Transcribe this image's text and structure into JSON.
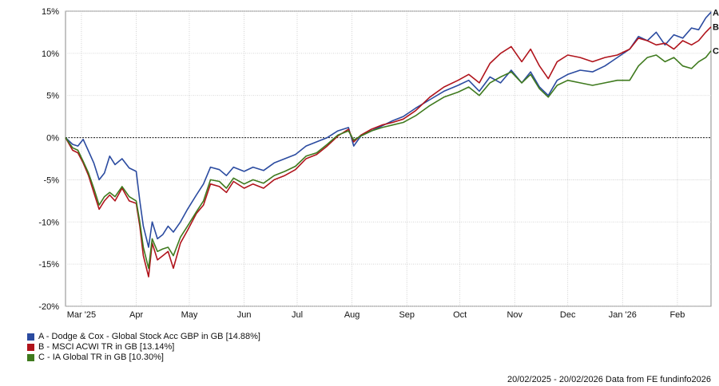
{
  "chart_data": {
    "type": "line",
    "y_ticks": [
      "15%",
      "10%",
      "5%",
      "0%",
      "-5%",
      "-10%",
      "-15%",
      "-20%"
    ],
    "y_tick_values": [
      15,
      10,
      5,
      0,
      -5,
      -10,
      -15,
      -20
    ],
    "ylim": [
      -20,
      15
    ],
    "xlim": [
      "2025-02-20",
      "2026-02-20"
    ],
    "x_ticks": [
      {
        "label": "Mar '25",
        "date": "2025-03-01"
      },
      {
        "label": "Apr",
        "date": "2025-04-01"
      },
      {
        "label": "May",
        "date": "2025-05-01"
      },
      {
        "label": "Jun",
        "date": "2025-06-01"
      },
      {
        "label": "Jul",
        "date": "2025-07-01"
      },
      {
        "label": "Aug",
        "date": "2025-08-01"
      },
      {
        "label": "Sep",
        "date": "2025-09-01"
      },
      {
        "label": "Oct",
        "date": "2025-10-01"
      },
      {
        "label": "Nov",
        "date": "2025-11-01"
      },
      {
        "label": "Dec",
        "date": "2025-12-01"
      },
      {
        "label": "Jan '26",
        "date": "2026-01-01"
      },
      {
        "label": "Feb",
        "date": "2026-02-01"
      }
    ],
    "grid": true,
    "zero_line": true,
    "series": [
      {
        "name": "A - Dodge & Cox - Global Stock Acc GBP in GB [14.88%]",
        "end_label": "A",
        "color": "#2b4ba0",
        "points": [
          [
            "2025-02-20",
            0
          ],
          [
            "2025-02-24",
            -0.8
          ],
          [
            "2025-02-27",
            -1.0
          ],
          [
            "2025-03-02",
            -0.2
          ],
          [
            "2025-03-05",
            -1.6
          ],
          [
            "2025-03-08",
            -3.0
          ],
          [
            "2025-03-11",
            -5.0
          ],
          [
            "2025-03-14",
            -4.2
          ],
          [
            "2025-03-17",
            -2.2
          ],
          [
            "2025-03-20",
            -3.2
          ],
          [
            "2025-03-24",
            -2.5
          ],
          [
            "2025-03-28",
            -3.6
          ],
          [
            "2025-04-01",
            -4.0
          ],
          [
            "2025-04-03",
            -7.5
          ],
          [
            "2025-04-05",
            -10.5
          ],
          [
            "2025-04-08",
            -13.0
          ],
          [
            "2025-04-10",
            -10.0
          ],
          [
            "2025-04-13",
            -12.0
          ],
          [
            "2025-04-16",
            -11.5
          ],
          [
            "2025-04-19",
            -10.5
          ],
          [
            "2025-04-22",
            -11.2
          ],
          [
            "2025-04-26",
            -10.0
          ],
          [
            "2025-04-30",
            -8.5
          ],
          [
            "2025-05-05",
            -6.8
          ],
          [
            "2025-05-09",
            -5.5
          ],
          [
            "2025-05-13",
            -3.5
          ],
          [
            "2025-05-18",
            -3.8
          ],
          [
            "2025-05-22",
            -4.5
          ],
          [
            "2025-05-26",
            -3.5
          ],
          [
            "2025-06-01",
            -4.0
          ],
          [
            "2025-06-06",
            -3.5
          ],
          [
            "2025-06-12",
            -3.9
          ],
          [
            "2025-06-18",
            -3.0
          ],
          [
            "2025-06-24",
            -2.5
          ],
          [
            "2025-06-30",
            -2.0
          ],
          [
            "2025-07-06",
            -1.0
          ],
          [
            "2025-07-12",
            -0.5
          ],
          [
            "2025-07-18",
            0.0
          ],
          [
            "2025-07-24",
            0.8
          ],
          [
            "2025-07-30",
            1.2
          ],
          [
            "2025-08-02",
            -1.0
          ],
          [
            "2025-08-06",
            0.2
          ],
          [
            "2025-08-12",
            0.8
          ],
          [
            "2025-08-18",
            1.4
          ],
          [
            "2025-08-24",
            2.0
          ],
          [
            "2025-08-30",
            2.5
          ],
          [
            "2025-09-06",
            3.5
          ],
          [
            "2025-09-14",
            4.5
          ],
          [
            "2025-09-22",
            5.5
          ],
          [
            "2025-09-30",
            6.2
          ],
          [
            "2025-10-06",
            6.8
          ],
          [
            "2025-10-12",
            5.5
          ],
          [
            "2025-10-18",
            7.2
          ],
          [
            "2025-10-24",
            6.5
          ],
          [
            "2025-10-30",
            8.0
          ],
          [
            "2025-11-05",
            6.5
          ],
          [
            "2025-11-10",
            7.8
          ],
          [
            "2025-11-15",
            6.0
          ],
          [
            "2025-11-20",
            5.0
          ],
          [
            "2025-11-25",
            6.8
          ],
          [
            "2025-12-01",
            7.5
          ],
          [
            "2025-12-08",
            8.0
          ],
          [
            "2025-12-15",
            7.8
          ],
          [
            "2025-12-22",
            8.5
          ],
          [
            "2025-12-29",
            9.5
          ],
          [
            "2026-01-05",
            10.5
          ],
          [
            "2026-01-10",
            12.0
          ],
          [
            "2026-01-15",
            11.5
          ],
          [
            "2026-01-20",
            12.5
          ],
          [
            "2026-01-25",
            11.0
          ],
          [
            "2026-01-30",
            12.2
          ],
          [
            "2026-02-04",
            11.8
          ],
          [
            "2026-02-09",
            13.0
          ],
          [
            "2026-02-13",
            12.8
          ],
          [
            "2026-02-17",
            14.2
          ],
          [
            "2026-02-20",
            14.88
          ]
        ]
      },
      {
        "name": "B - MSCI ACWI TR in GB [13.14%]",
        "end_label": "B",
        "color": "#b0141c",
        "points": [
          [
            "2025-02-20",
            0
          ],
          [
            "2025-02-24",
            -1.5
          ],
          [
            "2025-02-27",
            -1.8
          ],
          [
            "2025-03-02",
            -3.0
          ],
          [
            "2025-03-05",
            -4.5
          ],
          [
            "2025-03-08",
            -6.5
          ],
          [
            "2025-03-11",
            -8.5
          ],
          [
            "2025-03-14",
            -7.5
          ],
          [
            "2025-03-17",
            -6.8
          ],
          [
            "2025-03-20",
            -7.5
          ],
          [
            "2025-03-24",
            -6.0
          ],
          [
            "2025-03-28",
            -7.5
          ],
          [
            "2025-04-01",
            -7.8
          ],
          [
            "2025-04-03",
            -10.5
          ],
          [
            "2025-04-05",
            -14.0
          ],
          [
            "2025-04-08",
            -16.5
          ],
          [
            "2025-04-10",
            -12.5
          ],
          [
            "2025-04-13",
            -14.5
          ],
          [
            "2025-04-16",
            -14.0
          ],
          [
            "2025-04-19",
            -13.5
          ],
          [
            "2025-04-22",
            -15.5
          ],
          [
            "2025-04-26",
            -12.5
          ],
          [
            "2025-04-30",
            -11.0
          ],
          [
            "2025-05-05",
            -9.0
          ],
          [
            "2025-05-09",
            -8.0
          ],
          [
            "2025-05-13",
            -5.5
          ],
          [
            "2025-05-18",
            -5.8
          ],
          [
            "2025-05-22",
            -6.5
          ],
          [
            "2025-05-26",
            -5.2
          ],
          [
            "2025-06-01",
            -6.0
          ],
          [
            "2025-06-06",
            -5.5
          ],
          [
            "2025-06-12",
            -6.0
          ],
          [
            "2025-06-18",
            -5.0
          ],
          [
            "2025-06-24",
            -4.5
          ],
          [
            "2025-06-30",
            -3.8
          ],
          [
            "2025-07-06",
            -2.5
          ],
          [
            "2025-07-12",
            -2.0
          ],
          [
            "2025-07-18",
            -1.0
          ],
          [
            "2025-07-24",
            0.2
          ],
          [
            "2025-07-30",
            1.0
          ],
          [
            "2025-08-02",
            -0.5
          ],
          [
            "2025-08-06",
            0.3
          ],
          [
            "2025-08-12",
            1.0
          ],
          [
            "2025-08-18",
            1.5
          ],
          [
            "2025-08-24",
            1.8
          ],
          [
            "2025-08-30",
            2.2
          ],
          [
            "2025-09-06",
            3.2
          ],
          [
            "2025-09-14",
            4.8
          ],
          [
            "2025-09-22",
            6.0
          ],
          [
            "2025-09-30",
            6.8
          ],
          [
            "2025-10-06",
            7.5
          ],
          [
            "2025-10-12",
            6.5
          ],
          [
            "2025-10-18",
            8.8
          ],
          [
            "2025-10-24",
            10.0
          ],
          [
            "2025-10-30",
            10.8
          ],
          [
            "2025-11-05",
            9.0
          ],
          [
            "2025-11-10",
            10.5
          ],
          [
            "2025-11-15",
            8.5
          ],
          [
            "2025-11-20",
            7.0
          ],
          [
            "2025-11-25",
            9.0
          ],
          [
            "2025-12-01",
            9.8
          ],
          [
            "2025-12-08",
            9.5
          ],
          [
            "2025-12-15",
            9.0
          ],
          [
            "2025-12-22",
            9.5
          ],
          [
            "2025-12-29",
            9.8
          ],
          [
            "2026-01-05",
            10.5
          ],
          [
            "2026-01-10",
            11.8
          ],
          [
            "2026-01-15",
            11.5
          ],
          [
            "2026-01-20",
            11.0
          ],
          [
            "2026-01-25",
            11.2
          ],
          [
            "2026-01-30",
            10.5
          ],
          [
            "2026-02-04",
            11.5
          ],
          [
            "2026-02-09",
            11.0
          ],
          [
            "2026-02-13",
            11.5
          ],
          [
            "2026-02-17",
            12.5
          ],
          [
            "2026-02-20",
            13.14
          ]
        ]
      },
      {
        "name": "C - IA Global TR in GB [10.30%]",
        "end_label": "C",
        "color": "#3f7a1e",
        "points": [
          [
            "2025-02-20",
            0
          ],
          [
            "2025-02-24",
            -1.2
          ],
          [
            "2025-02-27",
            -1.5
          ],
          [
            "2025-03-02",
            -2.8
          ],
          [
            "2025-03-05",
            -4.2
          ],
          [
            "2025-03-08",
            -6.0
          ],
          [
            "2025-03-11",
            -8.0
          ],
          [
            "2025-03-14",
            -7.0
          ],
          [
            "2025-03-17",
            -6.5
          ],
          [
            "2025-03-20",
            -7.0
          ],
          [
            "2025-03-24",
            -5.8
          ],
          [
            "2025-03-28",
            -7.0
          ],
          [
            "2025-04-01",
            -7.5
          ],
          [
            "2025-04-03",
            -10.0
          ],
          [
            "2025-04-05",
            -13.0
          ],
          [
            "2025-04-08",
            -15.5
          ],
          [
            "2025-04-10",
            -12.0
          ],
          [
            "2025-04-13",
            -13.5
          ],
          [
            "2025-04-16",
            -13.2
          ],
          [
            "2025-04-19",
            -13.0
          ],
          [
            "2025-04-22",
            -14.0
          ],
          [
            "2025-04-26",
            -11.8
          ],
          [
            "2025-04-30",
            -10.5
          ],
          [
            "2025-05-05",
            -8.8
          ],
          [
            "2025-05-09",
            -7.5
          ],
          [
            "2025-05-13",
            -5.0
          ],
          [
            "2025-05-18",
            -5.2
          ],
          [
            "2025-05-22",
            -6.0
          ],
          [
            "2025-05-26",
            -4.8
          ],
          [
            "2025-06-01",
            -5.5
          ],
          [
            "2025-06-06",
            -5.0
          ],
          [
            "2025-06-12",
            -5.4
          ],
          [
            "2025-06-18",
            -4.5
          ],
          [
            "2025-06-24",
            -4.0
          ],
          [
            "2025-06-30",
            -3.4
          ],
          [
            "2025-07-06",
            -2.2
          ],
          [
            "2025-07-12",
            -1.8
          ],
          [
            "2025-07-18",
            -0.8
          ],
          [
            "2025-07-24",
            0.3
          ],
          [
            "2025-07-30",
            0.8
          ],
          [
            "2025-08-02",
            -0.3
          ],
          [
            "2025-08-06",
            0.2
          ],
          [
            "2025-08-12",
            0.8
          ],
          [
            "2025-08-18",
            1.2
          ],
          [
            "2025-08-24",
            1.5
          ],
          [
            "2025-08-30",
            1.8
          ],
          [
            "2025-09-06",
            2.6
          ],
          [
            "2025-09-14",
            3.8
          ],
          [
            "2025-09-22",
            4.8
          ],
          [
            "2025-09-30",
            5.4
          ],
          [
            "2025-10-06",
            6.0
          ],
          [
            "2025-10-12",
            5.0
          ],
          [
            "2025-10-18",
            6.5
          ],
          [
            "2025-10-24",
            7.2
          ],
          [
            "2025-10-30",
            7.8
          ],
          [
            "2025-11-05",
            6.5
          ],
          [
            "2025-11-10",
            7.5
          ],
          [
            "2025-11-15",
            5.8
          ],
          [
            "2025-11-20",
            4.8
          ],
          [
            "2025-11-25",
            6.2
          ],
          [
            "2025-12-01",
            6.8
          ],
          [
            "2025-12-08",
            6.5
          ],
          [
            "2025-12-15",
            6.2
          ],
          [
            "2025-12-22",
            6.5
          ],
          [
            "2025-12-29",
            6.8
          ],
          [
            "2026-01-05",
            6.8
          ],
          [
            "2026-01-10",
            8.5
          ],
          [
            "2026-01-15",
            9.5
          ],
          [
            "2026-01-20",
            9.8
          ],
          [
            "2026-01-25",
            9.0
          ],
          [
            "2026-01-30",
            9.5
          ],
          [
            "2026-02-04",
            8.5
          ],
          [
            "2026-02-09",
            8.2
          ],
          [
            "2026-02-13",
            9.0
          ],
          [
            "2026-02-17",
            9.5
          ],
          [
            "2026-02-20",
            10.3
          ]
        ]
      }
    ]
  },
  "footer": {
    "text": "20/02/2025 - 20/02/2026 Data from FE fundinfo2026"
  }
}
